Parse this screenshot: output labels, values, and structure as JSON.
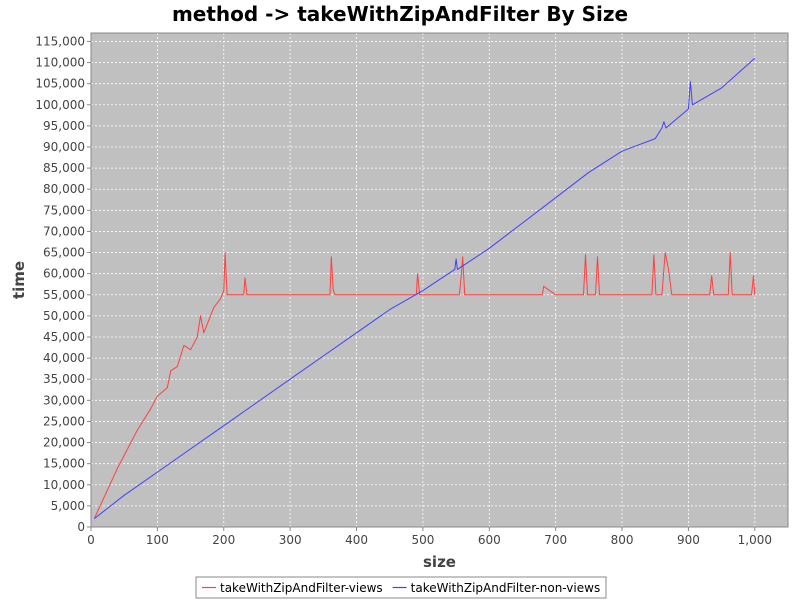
{
  "chart_data": {
    "type": "line",
    "title": "method -> takeWithZipAndFilter By Size",
    "xlabel": "size",
    "ylabel": "time",
    "xlim": [
      0,
      1050
    ],
    "ylim": [
      0,
      117000
    ],
    "x_ticks": [
      0,
      100,
      200,
      300,
      400,
      500,
      600,
      700,
      800,
      900,
      1000
    ],
    "x_tick_labels": [
      "0",
      "100",
      "200",
      "300",
      "400",
      "500",
      "600",
      "700",
      "800",
      "900",
      "1,000"
    ],
    "y_ticks": [
      0,
      5000,
      10000,
      15000,
      20000,
      25000,
      30000,
      35000,
      40000,
      45000,
      50000,
      55000,
      60000,
      65000,
      70000,
      75000,
      80000,
      85000,
      90000,
      95000,
      100000,
      105000,
      110000,
      115000
    ],
    "y_tick_labels": [
      "0",
      "5,000",
      "10,000",
      "15,000",
      "20,000",
      "25,000",
      "30,000",
      "35,000",
      "40,000",
      "45,000",
      "50,000",
      "55,000",
      "60,000",
      "65,000",
      "70,000",
      "75,000",
      "80,000",
      "85,000",
      "90,000",
      "95,000",
      "100,000",
      "105,000",
      "110,000",
      "115,000"
    ],
    "grid": true,
    "legend_position": "bottom",
    "background_color": "#c0c0c0",
    "series": [
      {
        "name": "takeWithZipAndFilter-views",
        "color": "#ff4040",
        "x": [
          5,
          40,
          70,
          90,
          100,
          115,
          120,
          130,
          140,
          150,
          160,
          165,
          170,
          185,
          195,
          200,
          202,
          205,
          210,
          230,
          232,
          235,
          300,
          360,
          362,
          365,
          368,
          400,
          490,
          492,
          495,
          550,
          555,
          558,
          560,
          563,
          600,
          680,
          682,
          700,
          742,
          745,
          748,
          760,
          763,
          766,
          800,
          845,
          848,
          851,
          860,
          865,
          870,
          875,
          900,
          932,
          935,
          938,
          960,
          963,
          966,
          990,
          995,
          998,
          1000
        ],
        "y": [
          2000,
          14000,
          23000,
          28000,
          31000,
          33000,
          37000,
          38000,
          43000,
          42000,
          45000,
          50000,
          46000,
          52000,
          54000,
          56000,
          65000,
          55000,
          55000,
          55000,
          59000,
          55000,
          55000,
          55000,
          64000,
          56000,
          55000,
          55000,
          55000,
          60000,
          55000,
          55000,
          55000,
          60000,
          64000,
          55000,
          55000,
          55000,
          57000,
          55000,
          55000,
          64500,
          55000,
          55000,
          64000,
          55000,
          55000,
          55000,
          64500,
          55000,
          55000,
          65000,
          61000,
          55000,
          55000,
          55000,
          59500,
          55000,
          55000,
          65000,
          55000,
          55000,
          55000,
          59500,
          55000
        ]
      },
      {
        "name": "takeWithZipAndFilter-non-views",
        "color": "#4040ff",
        "x": [
          5,
          50,
          100,
          150,
          200,
          250,
          300,
          350,
          400,
          450,
          500,
          548,
          550,
          552,
          600,
          650,
          700,
          750,
          800,
          850,
          860,
          863,
          866,
          900,
          903,
          906,
          950,
          1000
        ],
        "y": [
          2000,
          7500,
          13000,
          18500,
          24000,
          29500,
          35000,
          40500,
          46000,
          51500,
          56000,
          61000,
          63500,
          61000,
          66000,
          72000,
          78000,
          84000,
          89000,
          92000,
          94500,
          96000,
          94500,
          99000,
          105500,
          100000,
          104000,
          111000
        ]
      }
    ]
  }
}
